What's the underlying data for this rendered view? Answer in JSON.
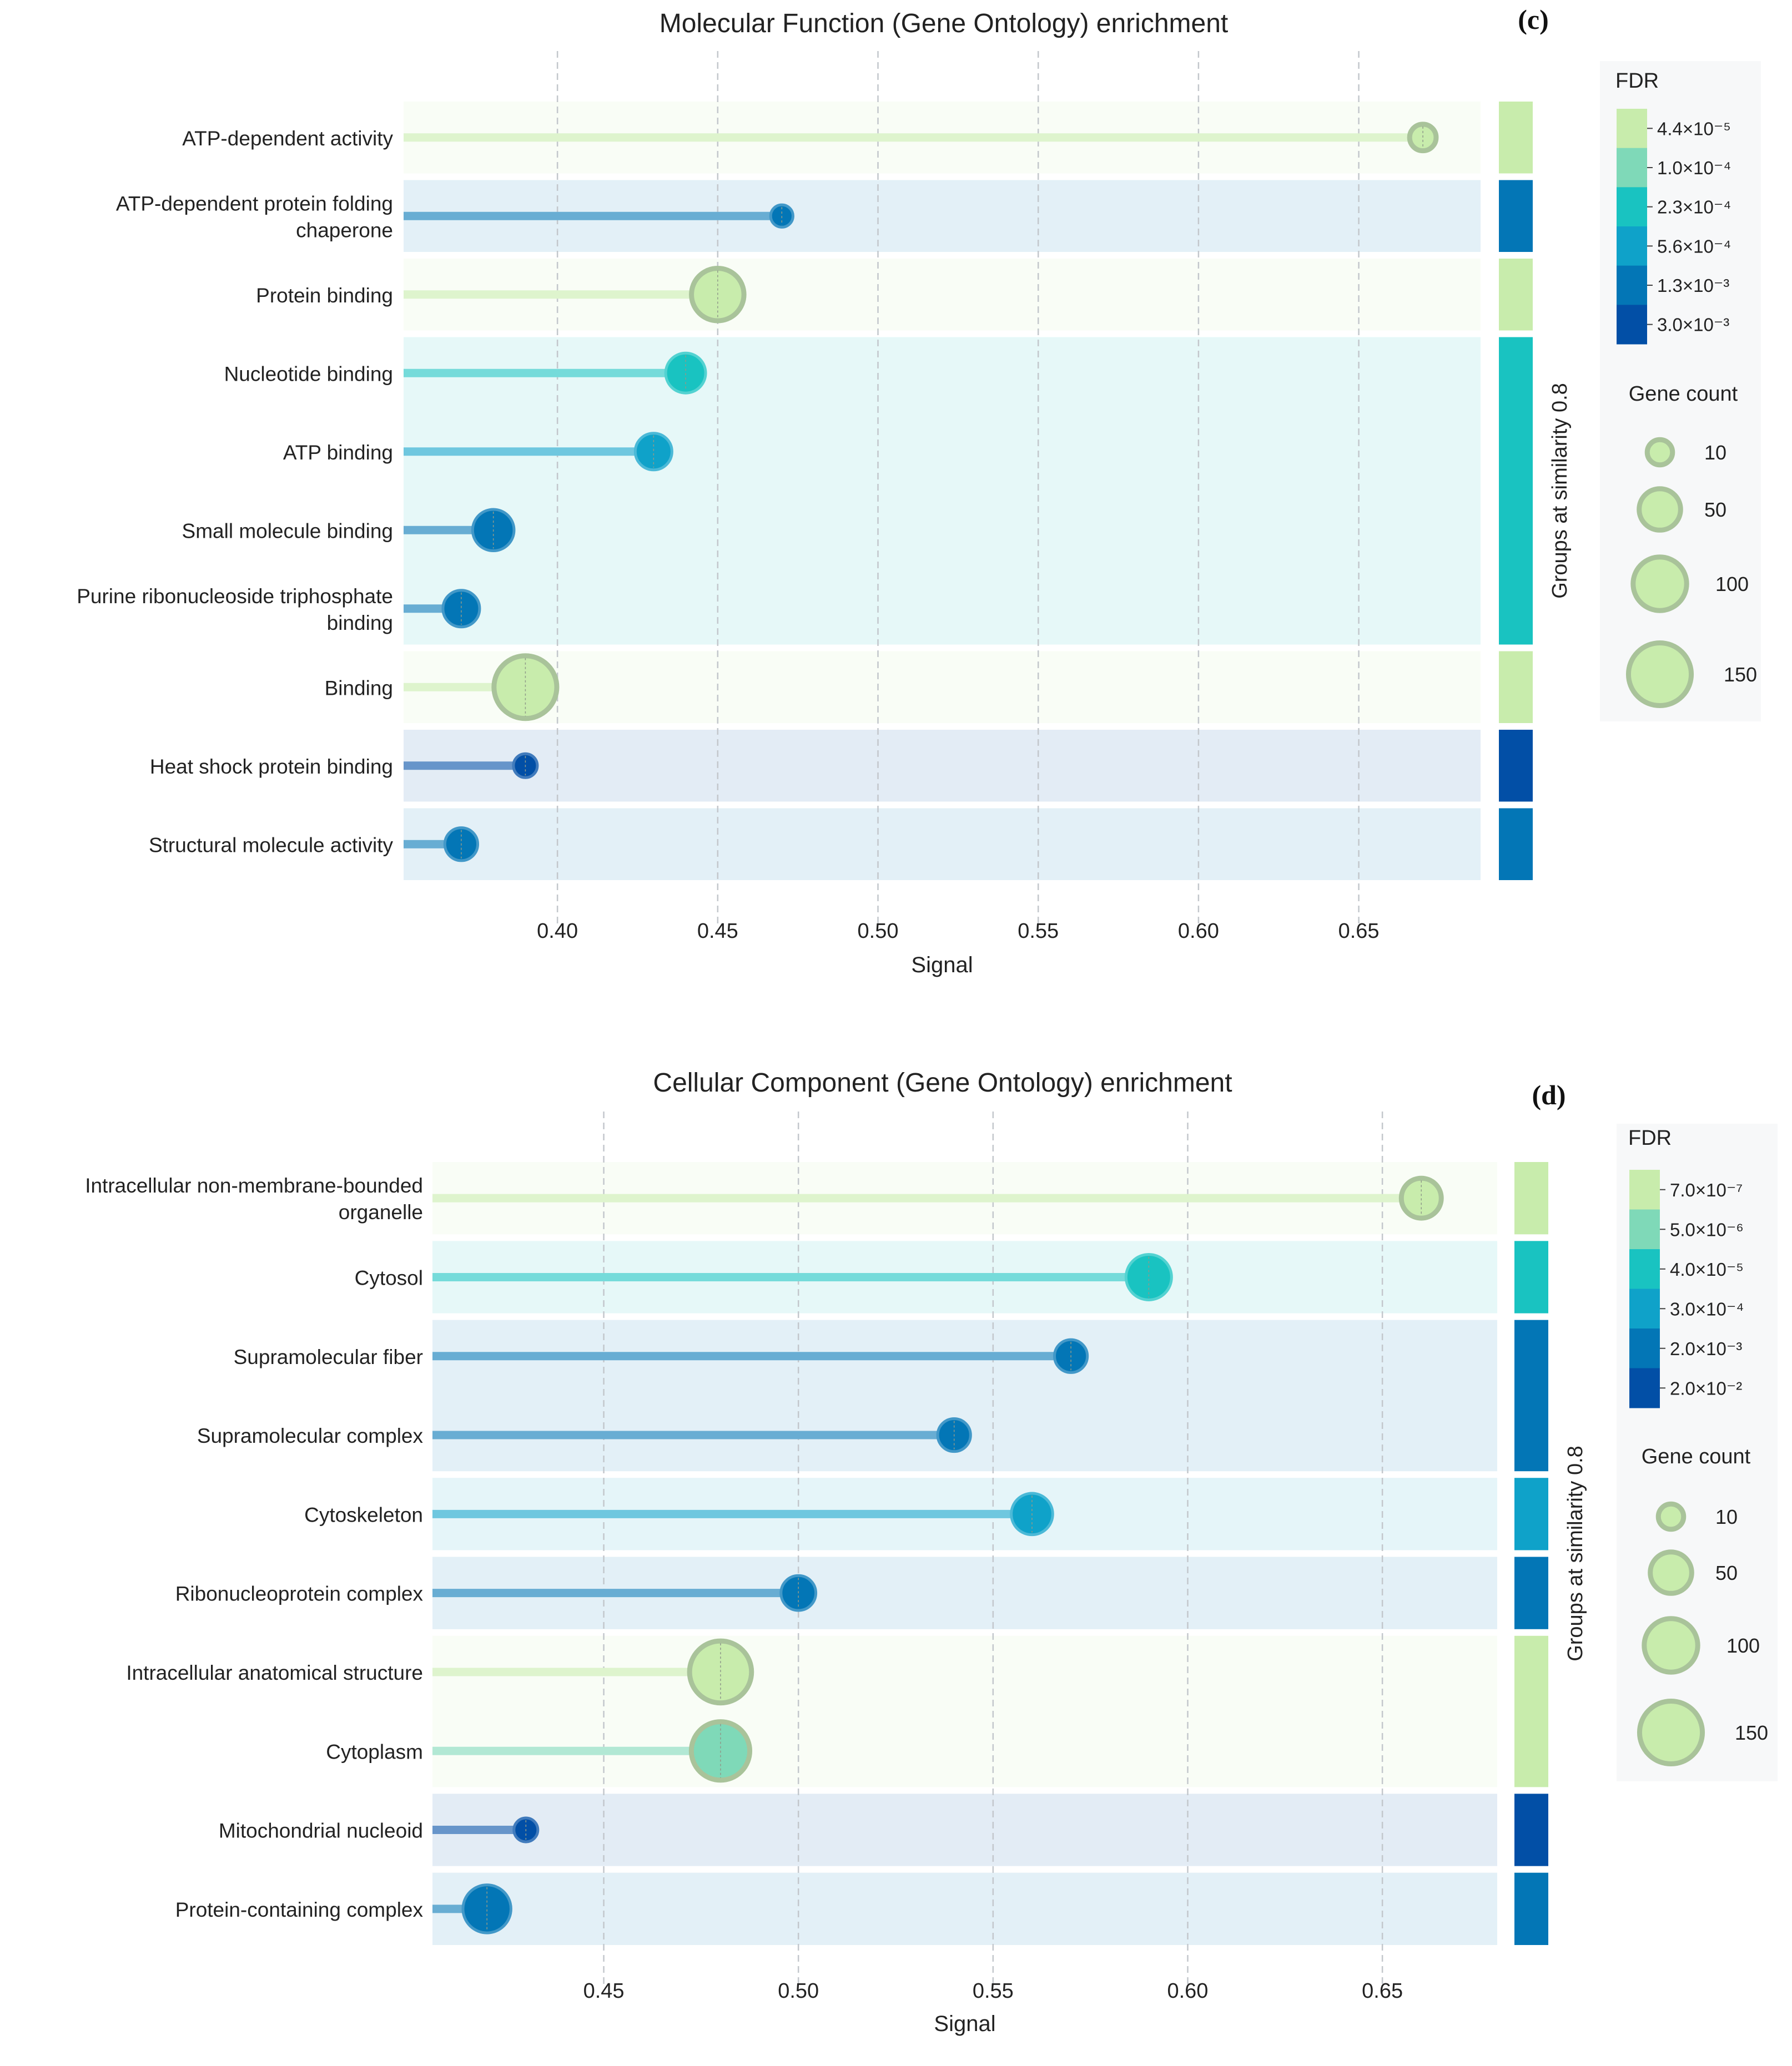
{
  "chart_data": [
    {
      "type": "lollipop",
      "panel_label": "(c)",
      "title": "Molecular Function (Gene Ontology) enrichment",
      "xlabel": "Signal",
      "xlim": [
        0.352,
        0.688
      ],
      "xticks": [
        0.4,
        0.45,
        0.5,
        0.55,
        0.6,
        0.65
      ],
      "xtick_labels": [
        "0.40",
        "0.45",
        "0.50",
        "0.55",
        "0.60",
        "0.65"
      ],
      "grid": "vertical dashed",
      "group_axis_label": "Groups at similarity 0.8",
      "fdr_legend": {
        "title": "FDR",
        "labels": [
          "4.4×10⁻⁵",
          "1.0×10⁻⁴",
          "2.3×10⁻⁴",
          "5.6×10⁻⁴",
          "1.3×10⁻³",
          "3.0×10⁻³"
        ],
        "colors": [
          "#c8ecac",
          "#7fd9b8",
          "#19c3c1",
          "#0fa2c9",
          "#0376b6",
          "#024fa6"
        ]
      },
      "size_legend": {
        "title": "Gene count",
        "values": [
          10,
          50,
          100,
          150
        ],
        "labels": [
          "10",
          "50",
          "100",
          "150"
        ]
      },
      "terms": [
        {
          "label": [
            "ATP-dependent activity"
          ],
          "signal": 0.67,
          "fdr_index": 0,
          "gene_count": 12,
          "group": 0
        },
        {
          "label": [
            "ATP-dependent protein folding",
            "chaperone"
          ],
          "signal": 0.47,
          "fdr_index": 4,
          "gene_count": 6,
          "group": 1
        },
        {
          "label": [
            "Protein binding"
          ],
          "signal": 0.45,
          "fdr_index": 0,
          "gene_count": 95,
          "group": 2
        },
        {
          "label": [
            "Nucleotide binding"
          ],
          "signal": 0.44,
          "fdr_index": 2,
          "gene_count": 45,
          "group": 3
        },
        {
          "label": [
            "ATP binding"
          ],
          "signal": 0.43,
          "fdr_index": 3,
          "gene_count": 35,
          "group": 3
        },
        {
          "label": [
            "Small molecule binding"
          ],
          "signal": 0.38,
          "fdr_index": 4,
          "gene_count": 50,
          "group": 3
        },
        {
          "label": [
            "Purine ribonucleoside triphosphate",
            "binding"
          ],
          "signal": 0.37,
          "fdr_index": 4,
          "gene_count": 35,
          "group": 3
        },
        {
          "label": [
            "Binding"
          ],
          "signal": 0.39,
          "fdr_index": 0,
          "gene_count": 150,
          "group": 4
        },
        {
          "label": [
            "Heat shock protein binding"
          ],
          "signal": 0.39,
          "fdr_index": 5,
          "gene_count": 8,
          "group": 5
        },
        {
          "label": [
            "Structural molecule activity"
          ],
          "signal": 0.37,
          "fdr_index": 4,
          "gene_count": 25,
          "group": 6
        }
      ],
      "groups": [
        {
          "rows": 1,
          "fdr_index": 0
        },
        {
          "rows": 1,
          "fdr_index": 4
        },
        {
          "rows": 1,
          "fdr_index": 0
        },
        {
          "rows": 4,
          "fdr_index": 2
        },
        {
          "rows": 1,
          "fdr_index": 0
        },
        {
          "rows": 1,
          "fdr_index": 5
        },
        {
          "rows": 1,
          "fdr_index": 4
        }
      ]
    },
    {
      "type": "lollipop",
      "panel_label": "(d)",
      "title": "Cellular Component (Gene Ontology) enrichment",
      "xlabel": "Signal",
      "xlim": [
        0.406,
        0.6795
      ],
      "xticks": [
        0.45,
        0.5,
        0.55,
        0.6,
        0.65
      ],
      "xtick_labels": [
        "0.45",
        "0.50",
        "0.55",
        "0.60",
        "0.65"
      ],
      "grid": "vertical dashed",
      "group_axis_label": "Groups at similarity 0.8",
      "fdr_legend": {
        "title": "FDR",
        "labels": [
          "7.0×10⁻⁷",
          "5.0×10⁻⁶",
          "4.0×10⁻⁵",
          "3.0×10⁻⁴",
          "2.0×10⁻³",
          "2.0×10⁻²"
        ],
        "colors": [
          "#c8ecac",
          "#7fd9b8",
          "#19c3c1",
          "#0fa2c9",
          "#0376b6",
          "#024fa6"
        ]
      },
      "size_legend": {
        "title": "Gene count",
        "values": [
          10,
          50,
          100,
          150
        ],
        "labels": [
          "10",
          "50",
          "100",
          "150"
        ]
      },
      "terms": [
        {
          "label": [
            "Intracellular non-membrane-bounded",
            "organelle"
          ],
          "signal": 0.66,
          "fdr_index": 0,
          "gene_count": 45,
          "group": 0
        },
        {
          "label": [
            "Cytosol"
          ],
          "signal": 0.59,
          "fdr_index": 2,
          "gene_count": 65,
          "group": 1
        },
        {
          "label": [
            "Supramolecular fiber"
          ],
          "signal": 0.57,
          "fdr_index": 4,
          "gene_count": 25,
          "group": 2
        },
        {
          "label": [
            "Supramolecular complex"
          ],
          "signal": 0.54,
          "fdr_index": 4,
          "gene_count": 25,
          "group": 2
        },
        {
          "label": [
            "Cytoskeleton"
          ],
          "signal": 0.56,
          "fdr_index": 3,
          "gene_count": 50,
          "group": 3
        },
        {
          "label": [
            "Ribonucleoprotein complex"
          ],
          "signal": 0.5,
          "fdr_index": 4,
          "gene_count": 30,
          "group": 4
        },
        {
          "label": [
            "Intracellular anatomical structure"
          ],
          "signal": 0.48,
          "fdr_index": 0,
          "gene_count": 145,
          "group": 5
        },
        {
          "label": [
            "Cytoplasm"
          ],
          "signal": 0.48,
          "fdr_index": 1,
          "gene_count": 125,
          "group": 5
        },
        {
          "label": [
            "Mitochondrial nucleoid"
          ],
          "signal": 0.43,
          "fdr_index": 5,
          "gene_count": 8,
          "group": 6
        },
        {
          "label": [
            "Protein-containing complex"
          ],
          "signal": 0.42,
          "fdr_index": 4,
          "gene_count": 75,
          "group": 7
        }
      ],
      "groups": [
        {
          "rows": 1,
          "fdr_index": 0
        },
        {
          "rows": 1,
          "fdr_index": 2
        },
        {
          "rows": 2,
          "fdr_index": 4
        },
        {
          "rows": 1,
          "fdr_index": 3
        },
        {
          "rows": 1,
          "fdr_index": 4
        },
        {
          "rows": 2,
          "fdr_index": 0
        },
        {
          "rows": 1,
          "fdr_index": 5
        },
        {
          "rows": 1,
          "fdr_index": 4
        }
      ]
    }
  ]
}
